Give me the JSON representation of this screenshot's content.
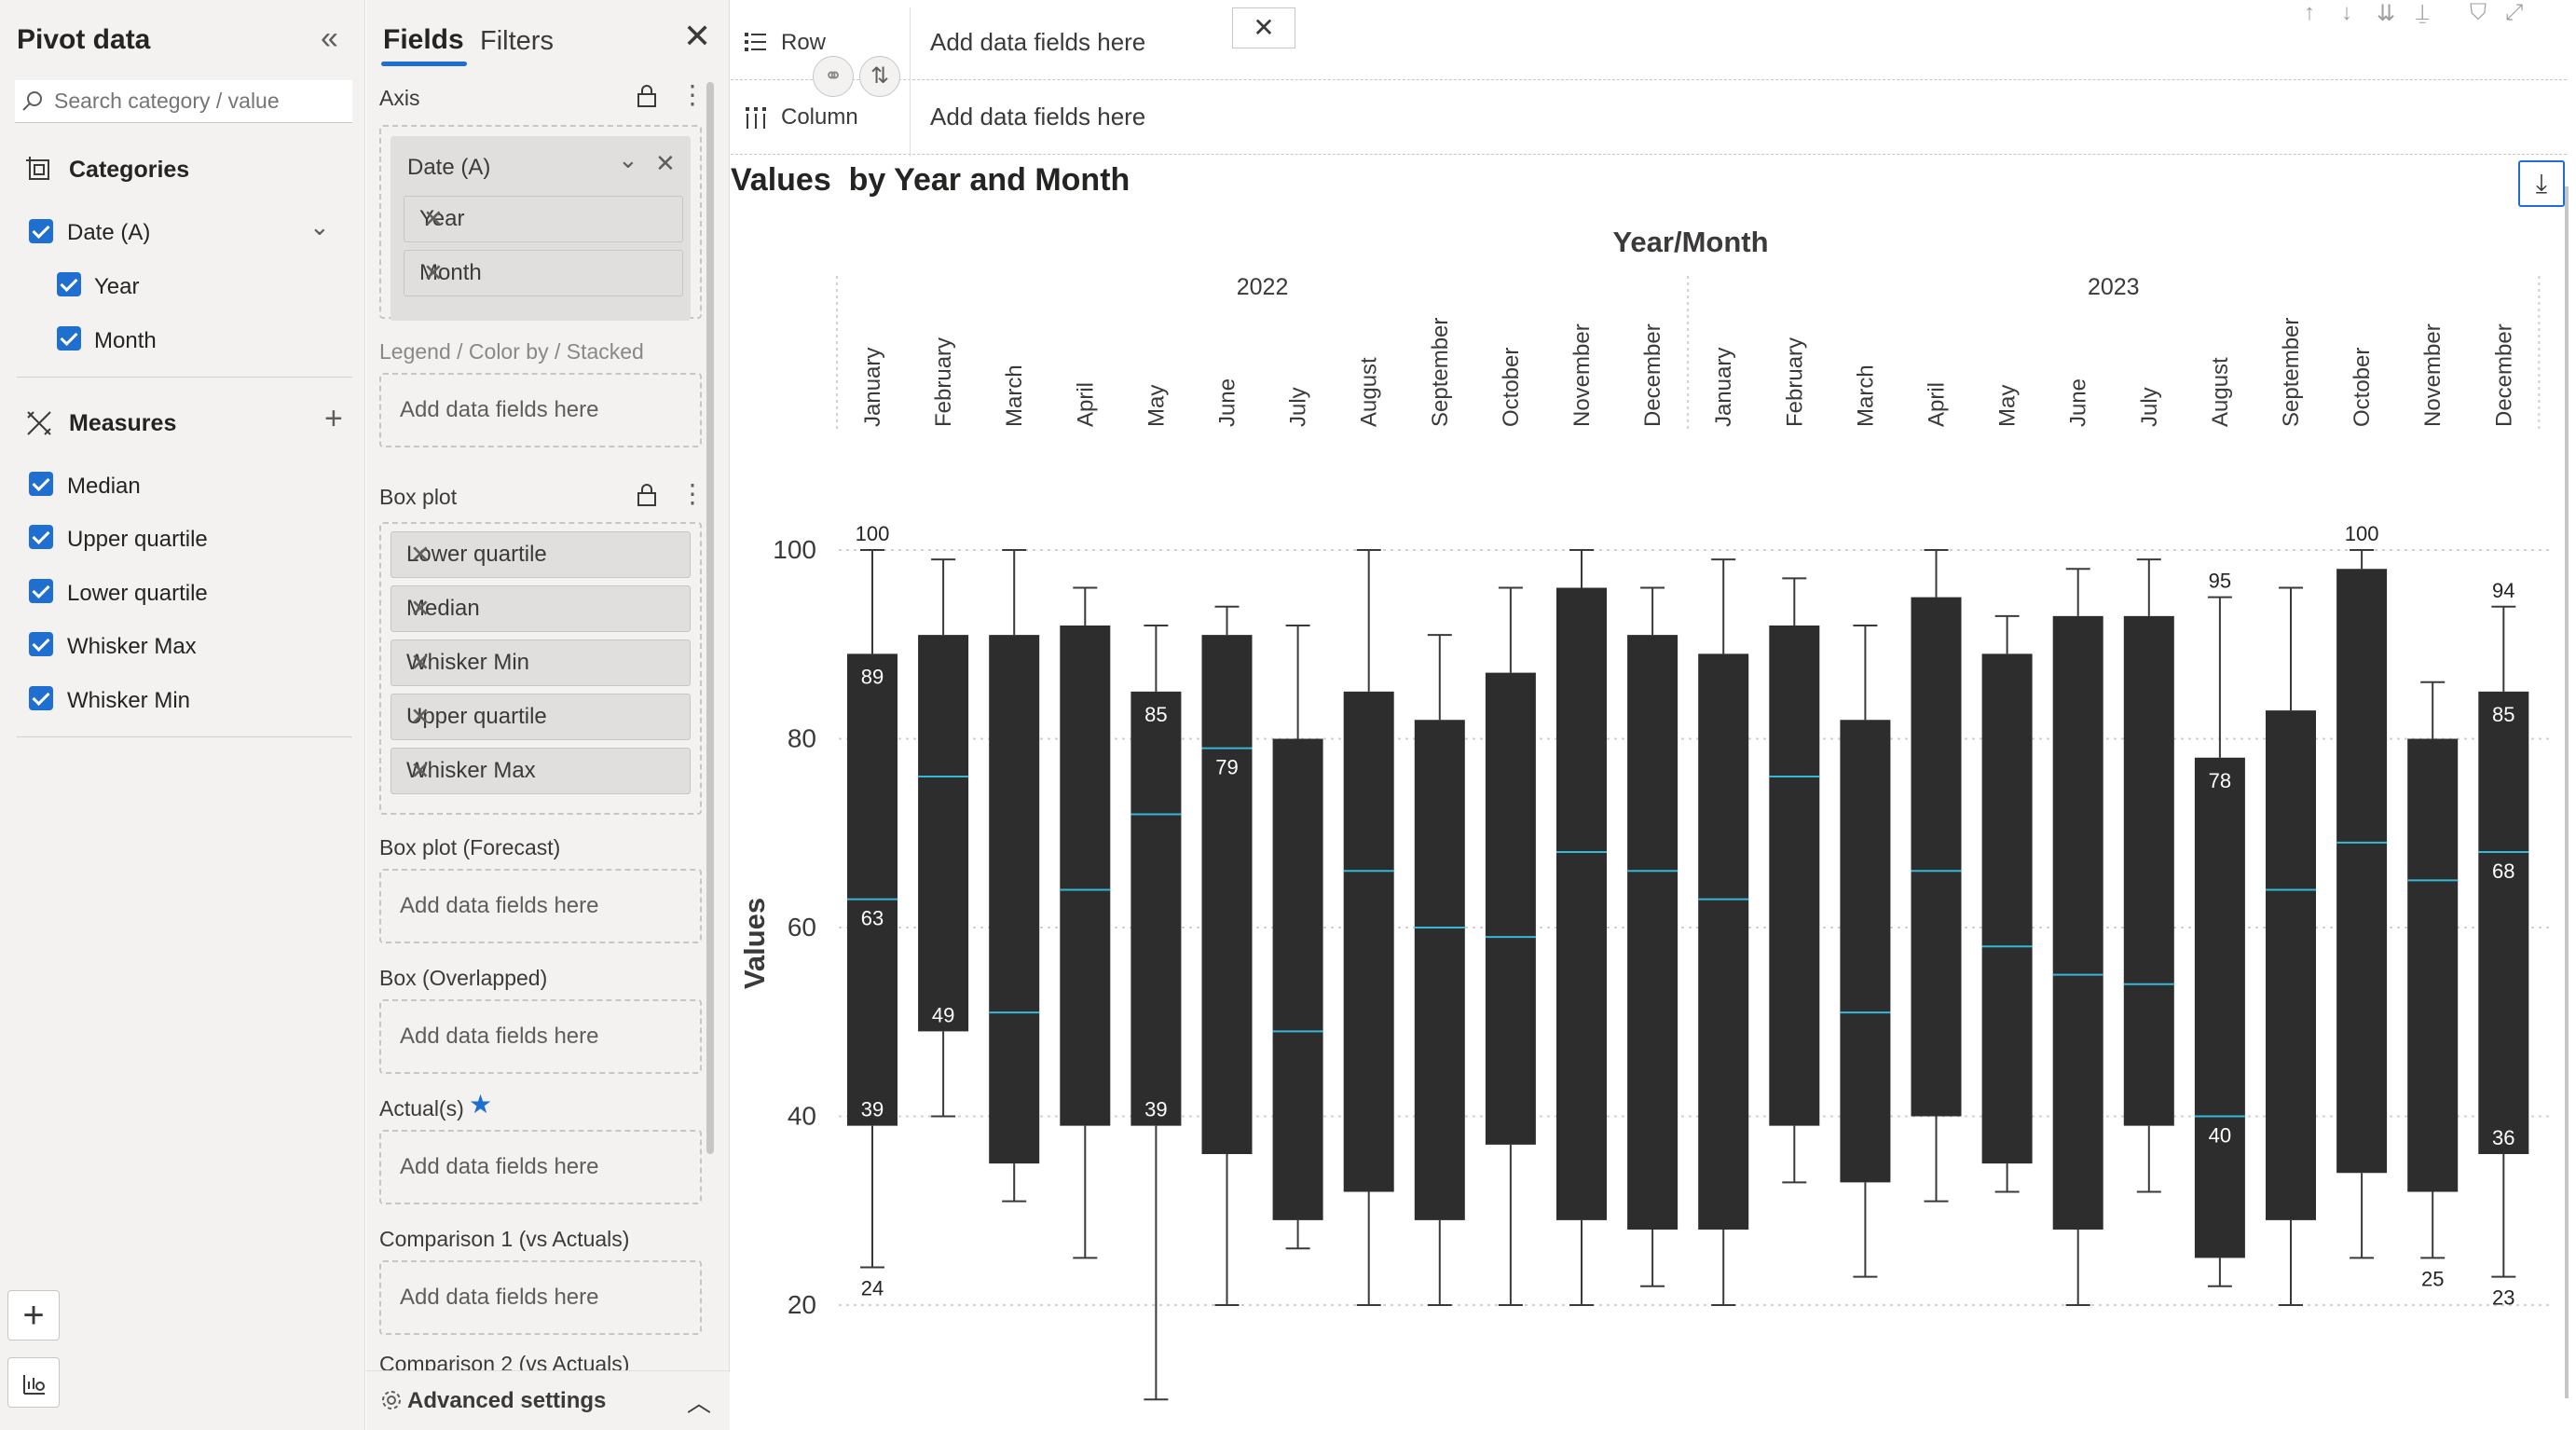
{
  "pivot": {
    "title": "Pivot data",
    "search_placeholder": "Search category / value",
    "categories_label": "Categories",
    "date_field": "Date (A)",
    "year": "Year",
    "month": "Month",
    "measures_label": "Measures",
    "measures": [
      "Median",
      "Upper quartile",
      "Lower quartile",
      "Whisker Max",
      "Whisker Min"
    ]
  },
  "fields": {
    "tab_fields": "Fields",
    "tab_filters": "Filters",
    "axis_label": "Axis",
    "axis_group": "Date (A)",
    "axis_items": [
      "Year",
      "Month"
    ],
    "legend_label": "Legend / Color by / Stacked",
    "add_here": "Add data fields here",
    "boxplot_label": "Box plot",
    "boxplot_items": [
      "Lower quartile",
      "Median",
      "Whisker Min",
      "Upper quartile",
      "Whisker Max"
    ],
    "forecast_label": "Box plot (Forecast)",
    "overlapped_label": "Box (Overlapped)",
    "actuals_label": "Actual(s)",
    "comparison_label": "Comparison 1 (vs Actuals)",
    "cut_label": "Comparison 2 (vs Actuals)",
    "advanced": "Advanced settings"
  },
  "toolbar": {
    "row_label": "Row",
    "column_label": "Column",
    "row_drop": "Add data fields here",
    "column_drop": "Add data fields here"
  },
  "colors": {
    "box": "#2d2d2d",
    "median": "#35b7d6",
    "accent": "#1f6fd1"
  },
  "chart_data": {
    "type": "boxplot",
    "title": "Values  by Year and Month",
    "axis_title": "Year/Month",
    "ylabel": "Values",
    "yticks": [
      "100",
      "80",
      "60",
      "40",
      "20"
    ],
    "ylim": [
      20,
      100
    ],
    "years": [
      "2022",
      "2023"
    ],
    "months": [
      "January",
      "February",
      "March",
      "April",
      "May",
      "June",
      "July",
      "August",
      "September",
      "October",
      "November",
      "December",
      "January",
      "February",
      "March",
      "April",
      "May",
      "June",
      "July",
      "August",
      "September",
      "October",
      "November",
      "December"
    ],
    "boxes": [
      {
        "whisker_max": 100,
        "upper": 89,
        "median": 63,
        "lower": 39,
        "whisker_min": 24
      },
      {
        "whisker_max": 99,
        "upper": 91,
        "median": 76,
        "lower": 49,
        "whisker_min": 40
      },
      {
        "whisker_max": 100,
        "upper": 91,
        "median": 51,
        "lower": 35,
        "whisker_min": 31
      },
      {
        "whisker_max": 96,
        "upper": 92,
        "median": 64,
        "lower": 39,
        "whisker_min": 25
      },
      {
        "whisker_max": 92,
        "upper": 85,
        "median": 72,
        "lower": 39,
        "whisker_min": 10
      },
      {
        "whisker_max": 94,
        "upper": 91,
        "median": 79,
        "lower": 36,
        "whisker_min": 20
      },
      {
        "whisker_max": 92,
        "upper": 80,
        "median": 49,
        "lower": 29,
        "whisker_min": 26
      },
      {
        "whisker_max": 100,
        "upper": 85,
        "median": 66,
        "lower": 32,
        "whisker_min": 20
      },
      {
        "whisker_max": 91,
        "upper": 82,
        "median": 60,
        "lower": 29,
        "whisker_min": 20
      },
      {
        "whisker_max": 96,
        "upper": 87,
        "median": 59,
        "lower": 37,
        "whisker_min": 20
      },
      {
        "whisker_max": 100,
        "upper": 96,
        "median": 68,
        "lower": 29,
        "whisker_min": 20
      },
      {
        "whisker_max": 96,
        "upper": 91,
        "median": 66,
        "lower": 28,
        "whisker_min": 22
      },
      {
        "whisker_max": 99,
        "upper": 89,
        "median": 63,
        "lower": 28,
        "whisker_min": 20
      },
      {
        "whisker_max": 97,
        "upper": 92,
        "median": 76,
        "lower": 39,
        "whisker_min": 33
      },
      {
        "whisker_max": 92,
        "upper": 82,
        "median": 51,
        "lower": 33,
        "whisker_min": 23
      },
      {
        "whisker_max": 100,
        "upper": 95,
        "median": 66,
        "lower": 40,
        "whisker_min": 31
      },
      {
        "whisker_max": 93,
        "upper": 89,
        "median": 58,
        "lower": 35,
        "whisker_min": 32
      },
      {
        "whisker_max": 98,
        "upper": 93,
        "median": 55,
        "lower": 28,
        "whisker_min": 20
      },
      {
        "whisker_max": 99,
        "upper": 93,
        "median": 54,
        "lower": 39,
        "whisker_min": 32
      },
      {
        "whisker_max": 95,
        "upper": 78,
        "median": 40,
        "lower": 25,
        "whisker_min": 22
      },
      {
        "whisker_max": 96,
        "upper": 83,
        "median": 64,
        "lower": 29,
        "whisker_min": 20
      },
      {
        "whisker_max": 100,
        "upper": 98,
        "median": 69,
        "lower": 34,
        "whisker_min": 25
      },
      {
        "whisker_max": 86,
        "upper": 80,
        "median": 65,
        "lower": 32,
        "whisker_min": 25
      },
      {
        "whisker_max": 94,
        "upper": 85,
        "median": 68,
        "lower": 36,
        "whisker_min": 23
      }
    ],
    "data_labels": [
      {
        "box": 0,
        "field": "whisker_max",
        "text": "100"
      },
      {
        "box": 0,
        "field": "upper",
        "text": "89"
      },
      {
        "box": 0,
        "field": "median",
        "text": "63"
      },
      {
        "box": 0,
        "field": "lower",
        "text": "39"
      },
      {
        "box": 0,
        "field": "whisker_min",
        "text": "24"
      },
      {
        "box": 1,
        "field": "lower",
        "text": "49"
      },
      {
        "box": 4,
        "field": "upper",
        "text": "85"
      },
      {
        "box": 4,
        "field": "lower",
        "text": "39"
      },
      {
        "box": 5,
        "field": "median",
        "text": "79"
      },
      {
        "box": 19,
        "field": "whisker_max",
        "text": "95"
      },
      {
        "box": 19,
        "field": "upper",
        "text": "78"
      },
      {
        "box": 19,
        "field": "median",
        "text": "40"
      },
      {
        "box": 21,
        "field": "whisker_max",
        "text": "100"
      },
      {
        "box": 22,
        "field": "whisker_min",
        "text": "25"
      },
      {
        "box": 23,
        "field": "whisker_max",
        "text": "94"
      },
      {
        "box": 23,
        "field": "upper",
        "text": "85"
      },
      {
        "box": 23,
        "field": "median",
        "text": "68"
      },
      {
        "box": 23,
        "field": "lower",
        "text": "36"
      },
      {
        "box": 23,
        "field": "whisker_min",
        "text": "23"
      }
    ]
  }
}
